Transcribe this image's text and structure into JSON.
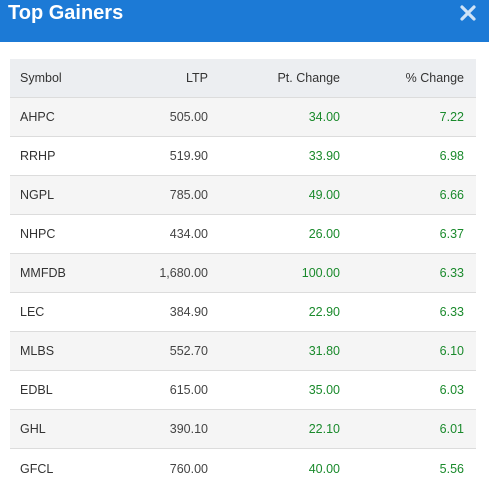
{
  "header": {
    "title": "Top Gainers"
  },
  "table": {
    "columns": [
      "Symbol",
      "LTP",
      "Pt. Change",
      "% Change"
    ],
    "rows": [
      {
        "symbol": "AHPC",
        "ltp": "505.00",
        "pt_change": "34.00",
        "pct_change": "7.22"
      },
      {
        "symbol": "RRHP",
        "ltp": "519.90",
        "pt_change": "33.90",
        "pct_change": "6.98"
      },
      {
        "symbol": "NGPL",
        "ltp": "785.00",
        "pt_change": "49.00",
        "pct_change": "6.66"
      },
      {
        "symbol": "NHPC",
        "ltp": "434.00",
        "pt_change": "26.00",
        "pct_change": "6.37"
      },
      {
        "symbol": "MMFDB",
        "ltp": "1,680.00",
        "pt_change": "100.00",
        "pct_change": "6.33"
      },
      {
        "symbol": "LEC",
        "ltp": "384.90",
        "pt_change": "22.90",
        "pct_change": "6.33"
      },
      {
        "symbol": "MLBS",
        "ltp": "552.70",
        "pt_change": "31.80",
        "pct_change": "6.10"
      },
      {
        "symbol": "EDBL",
        "ltp": "615.00",
        "pt_change": "35.00",
        "pct_change": "6.03"
      },
      {
        "symbol": "GHL",
        "ltp": "390.10",
        "pt_change": "22.10",
        "pct_change": "6.01"
      },
      {
        "symbol": "GFCL",
        "ltp": "760.00",
        "pt_change": "40.00",
        "pct_change": "5.56"
      }
    ]
  },
  "colors": {
    "header_bg": "#1c7ad6",
    "positive": "#1a8a2c"
  },
  "icons": {
    "close": "close-icon"
  }
}
